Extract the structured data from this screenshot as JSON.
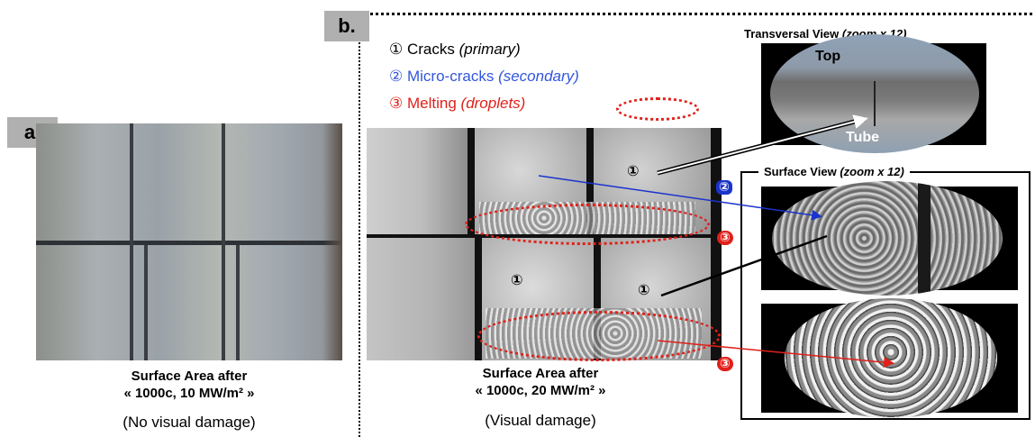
{
  "panel_a": {
    "tag": "a.",
    "caption_line1": "Surface Area after",
    "caption_line2": "« 1000c, 10 MW/m² »",
    "subcaption": "(No visual damage)"
  },
  "panel_b": {
    "tag": "b.",
    "legend": {
      "items": [
        {
          "num": "①",
          "label": "Cracks",
          "note": "(primary)",
          "color": "#000000"
        },
        {
          "num": "②",
          "label": "Micro-cracks",
          "note": "(secondary)",
          "color": "#3355dd"
        },
        {
          "num": "③",
          "label": "Melting",
          "note": "(droplets)",
          "color": "#e0201a"
        }
      ]
    },
    "caption_line1": "Surface Area after",
    "caption_line2": "« 1000c, 20 MW/m² »",
    "subcaption": "(Visual damage)",
    "markers": {
      "one": "①",
      "two": "②",
      "three": "③"
    }
  },
  "transversal": {
    "title": "Transversal View",
    "zoom": "(zoom x 12)",
    "top_label": "Top",
    "bottom_label": "Tube"
  },
  "surface_view": {
    "title": "Surface View",
    "zoom": "(zoom x 12)"
  },
  "colors": {
    "tag_bg": "#b0b0b0",
    "blue": "#1a33cc",
    "red": "#e0201a"
  }
}
